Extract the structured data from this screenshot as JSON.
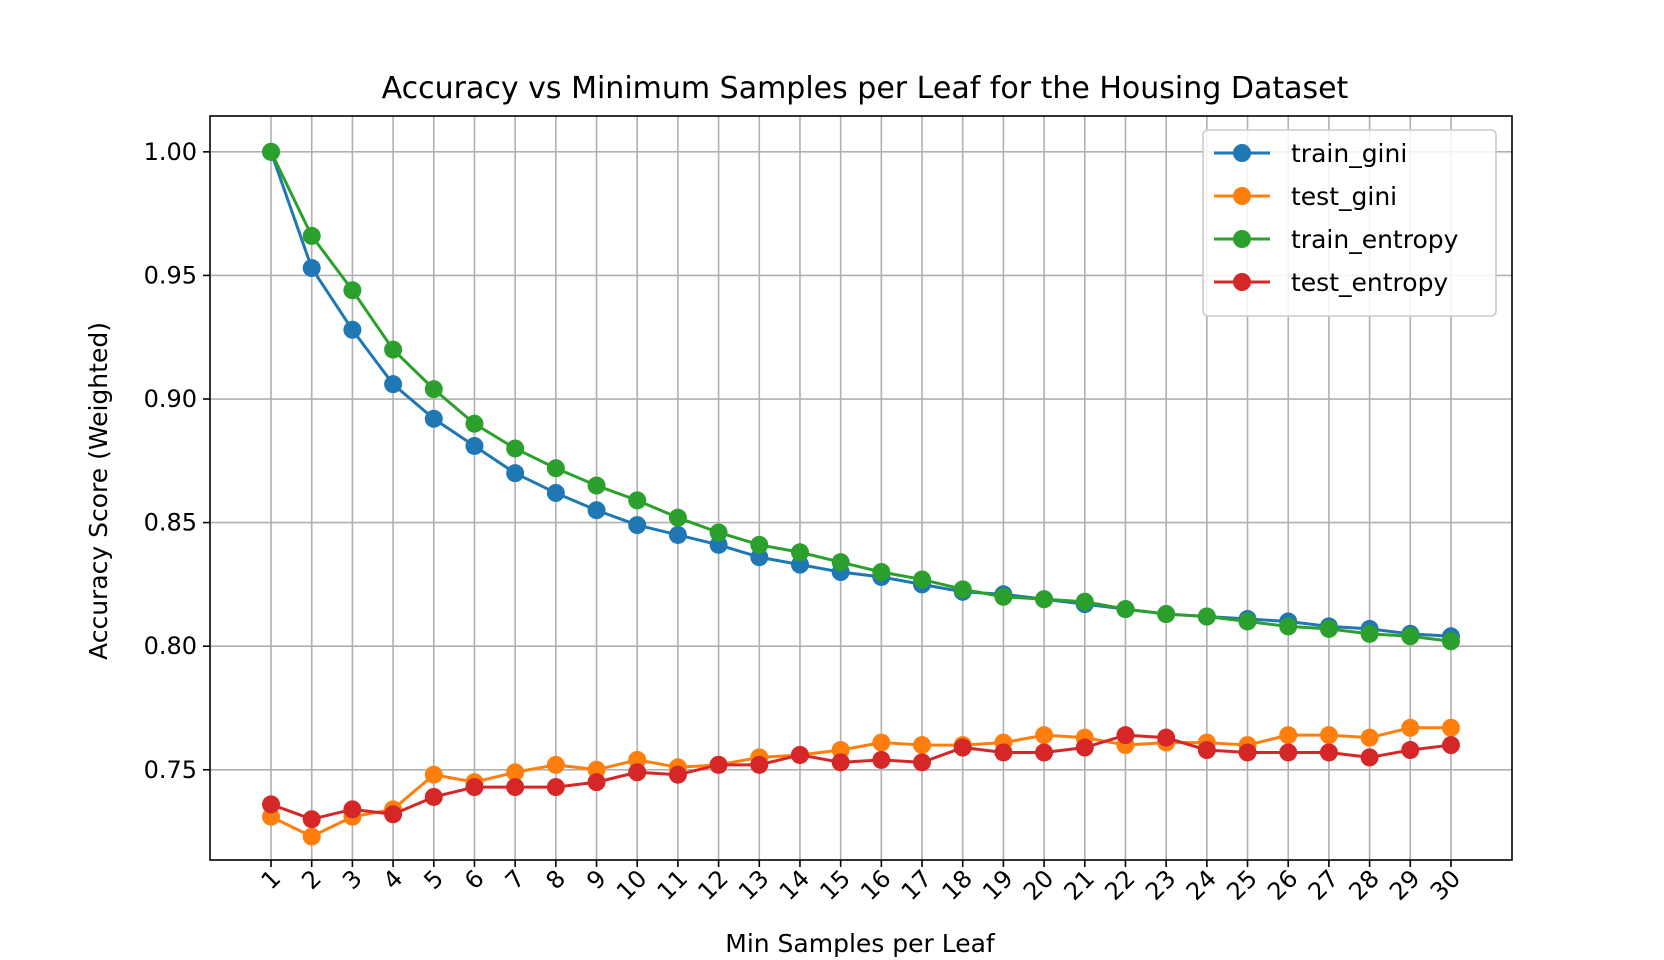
{
  "chart_data": {
    "type": "line",
    "title": "Accuracy vs Minimum Samples per Leaf for the Housing Dataset",
    "xlabel": "Min Samples per Leaf",
    "ylabel": "Accuracy Score (Weighted)",
    "x": [
      1,
      2,
      3,
      4,
      5,
      6,
      7,
      8,
      9,
      10,
      11,
      12,
      13,
      14,
      15,
      16,
      17,
      18,
      19,
      20,
      21,
      22,
      23,
      24,
      25,
      26,
      27,
      28,
      29,
      30
    ],
    "xlim": [
      -0.5,
      31.5
    ],
    "ylim": [
      0.7135,
      1.0145
    ],
    "yticks": [
      0.75,
      0.8,
      0.85,
      0.9,
      0.95,
      1.0
    ],
    "ytick_labels": [
      "0.75",
      "0.80",
      "0.85",
      "0.90",
      "0.95",
      "1.00"
    ],
    "grid": true,
    "legend_position": "top-right",
    "marker": "circle",
    "series": [
      {
        "name": "train_gini",
        "color": "#1f77b4",
        "values": [
          1.0,
          0.953,
          0.928,
          0.906,
          0.892,
          0.881,
          0.87,
          0.862,
          0.855,
          0.849,
          0.845,
          0.841,
          0.836,
          0.833,
          0.83,
          0.828,
          0.825,
          0.822,
          0.821,
          0.819,
          0.817,
          0.815,
          0.813,
          0.812,
          0.811,
          0.81,
          0.808,
          0.807,
          0.805,
          0.804
        ]
      },
      {
        "name": "test_gini",
        "color": "#ff7f0e",
        "values": [
          0.731,
          0.723,
          0.731,
          0.734,
          0.748,
          0.745,
          0.749,
          0.752,
          0.75,
          0.754,
          0.751,
          0.752,
          0.755,
          0.756,
          0.758,
          0.761,
          0.76,
          0.76,
          0.761,
          0.764,
          0.763,
          0.76,
          0.761,
          0.761,
          0.76,
          0.764,
          0.764,
          0.763,
          0.767,
          0.767
        ]
      },
      {
        "name": "train_entropy",
        "color": "#2ca02c",
        "values": [
          1.0,
          0.966,
          0.944,
          0.92,
          0.904,
          0.89,
          0.88,
          0.872,
          0.865,
          0.859,
          0.852,
          0.846,
          0.841,
          0.838,
          0.834,
          0.83,
          0.827,
          0.823,
          0.82,
          0.819,
          0.818,
          0.815,
          0.813,
          0.812,
          0.81,
          0.808,
          0.807,
          0.805,
          0.804,
          0.802
        ]
      },
      {
        "name": "test_entropy",
        "color": "#d62728",
        "values": [
          0.736,
          0.73,
          0.734,
          0.732,
          0.739,
          0.743,
          0.743,
          0.743,
          0.745,
          0.749,
          0.748,
          0.752,
          0.752,
          0.756,
          0.753,
          0.754,
          0.753,
          0.759,
          0.757,
          0.757,
          0.759,
          0.764,
          0.763,
          0.758,
          0.757,
          0.757,
          0.757,
          0.755,
          0.758,
          0.76
        ]
      }
    ]
  }
}
